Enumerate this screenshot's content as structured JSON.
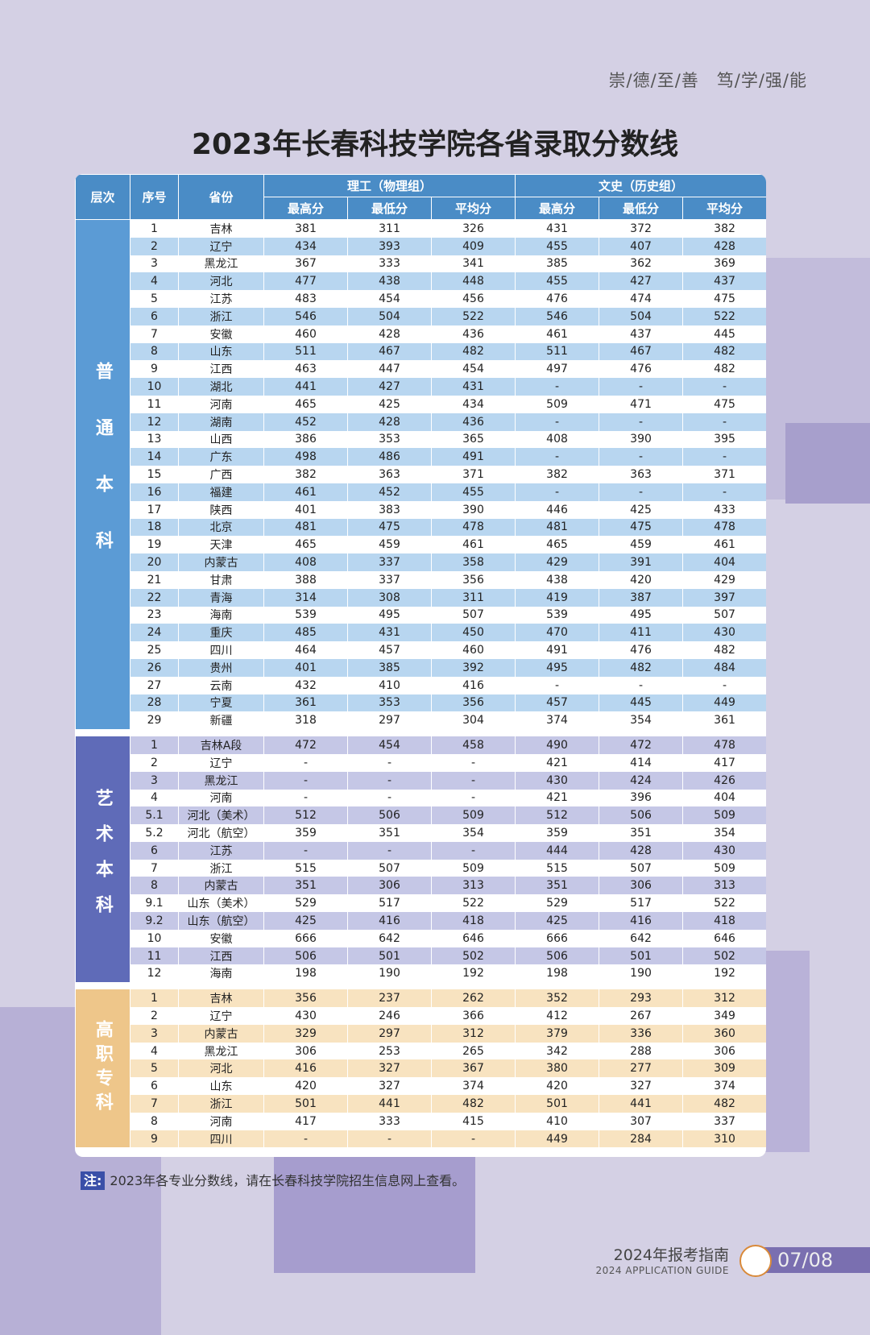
{
  "motto": "崇/德/至/善　笃/学/强/能",
  "title": "2023年长春科技学院各省录取分数线",
  "headers": {
    "level": "层次",
    "index": "序号",
    "province": "省份",
    "group1": "理工（物理组）",
    "group2": "文史（历史组）",
    "max": "最高分",
    "min": "最低分",
    "avg": "平均分"
  },
  "sections": [
    {
      "label": "普通本科",
      "rows": [
        [
          "1",
          "吉林",
          "381",
          "311",
          "326",
          "431",
          "372",
          "382"
        ],
        [
          "2",
          "辽宁",
          "434",
          "393",
          "409",
          "455",
          "407",
          "428"
        ],
        [
          "3",
          "黑龙江",
          "367",
          "333",
          "341",
          "385",
          "362",
          "369"
        ],
        [
          "4",
          "河北",
          "477",
          "438",
          "448",
          "455",
          "427",
          "437"
        ],
        [
          "5",
          "江苏",
          "483",
          "454",
          "456",
          "476",
          "474",
          "475"
        ],
        [
          "6",
          "浙江",
          "546",
          "504",
          "522",
          "546",
          "504",
          "522"
        ],
        [
          "7",
          "安徽",
          "460",
          "428",
          "436",
          "461",
          "437",
          "445"
        ],
        [
          "8",
          "山东",
          "511",
          "467",
          "482",
          "511",
          "467",
          "482"
        ],
        [
          "9",
          "江西",
          "463",
          "447",
          "454",
          "497",
          "476",
          "482"
        ],
        [
          "10",
          "湖北",
          "441",
          "427",
          "431",
          "-",
          "-",
          "-"
        ],
        [
          "11",
          "河南",
          "465",
          "425",
          "434",
          "509",
          "471",
          "475"
        ],
        [
          "12",
          "湖南",
          "452",
          "428",
          "436",
          "-",
          "-",
          "-"
        ],
        [
          "13",
          "山西",
          "386",
          "353",
          "365",
          "408",
          "390",
          "395"
        ],
        [
          "14",
          "广东",
          "498",
          "486",
          "491",
          "-",
          "-",
          "-"
        ],
        [
          "15",
          "广西",
          "382",
          "363",
          "371",
          "382",
          "363",
          "371"
        ],
        [
          "16",
          "福建",
          "461",
          "452",
          "455",
          "-",
          "-",
          "-"
        ],
        [
          "17",
          "陕西",
          "401",
          "383",
          "390",
          "446",
          "425",
          "433"
        ],
        [
          "18",
          "北京",
          "481",
          "475",
          "478",
          "481",
          "475",
          "478"
        ],
        [
          "19",
          "天津",
          "465",
          "459",
          "461",
          "465",
          "459",
          "461"
        ],
        [
          "20",
          "内蒙古",
          "408",
          "337",
          "358",
          "429",
          "391",
          "404"
        ],
        [
          "21",
          "甘肃",
          "388",
          "337",
          "356",
          "438",
          "420",
          "429"
        ],
        [
          "22",
          "青海",
          "314",
          "308",
          "311",
          "419",
          "387",
          "397"
        ],
        [
          "23",
          "海南",
          "539",
          "495",
          "507",
          "539",
          "495",
          "507"
        ],
        [
          "24",
          "重庆",
          "485",
          "431",
          "450",
          "470",
          "411",
          "430"
        ],
        [
          "25",
          "四川",
          "464",
          "457",
          "460",
          "491",
          "476",
          "482"
        ],
        [
          "26",
          "贵州",
          "401",
          "385",
          "392",
          "495",
          "482",
          "484"
        ],
        [
          "27",
          "云南",
          "432",
          "410",
          "416",
          "-",
          "-",
          "-"
        ],
        [
          "28",
          "宁夏",
          "361",
          "353",
          "356",
          "457",
          "445",
          "449"
        ],
        [
          "29",
          "新疆",
          "318",
          "297",
          "304",
          "374",
          "354",
          "361"
        ]
      ]
    },
    {
      "label": "艺术本科",
      "rows": [
        [
          "1",
          "吉林A段",
          "472",
          "454",
          "458",
          "490",
          "472",
          "478"
        ],
        [
          "2",
          "辽宁",
          "-",
          "-",
          "-",
          "421",
          "414",
          "417"
        ],
        [
          "3",
          "黑龙江",
          "-",
          "-",
          "-",
          "430",
          "424",
          "426"
        ],
        [
          "4",
          "河南",
          "-",
          "-",
          "-",
          "421",
          "396",
          "404"
        ],
        [
          "5.1",
          "河北（美术）",
          "512",
          "506",
          "509",
          "512",
          "506",
          "509"
        ],
        [
          "5.2",
          "河北（航空）",
          "359",
          "351",
          "354",
          "359",
          "351",
          "354"
        ],
        [
          "6",
          "江苏",
          "-",
          "-",
          "-",
          "444",
          "428",
          "430"
        ],
        [
          "7",
          "浙江",
          "515",
          "507",
          "509",
          "515",
          "507",
          "509"
        ],
        [
          "8",
          "内蒙古",
          "351",
          "306",
          "313",
          "351",
          "306",
          "313"
        ],
        [
          "9.1",
          "山东（美术）",
          "529",
          "517",
          "522",
          "529",
          "517",
          "522"
        ],
        [
          "9.2",
          "山东（航空）",
          "425",
          "416",
          "418",
          "425",
          "416",
          "418"
        ],
        [
          "10",
          "安徽",
          "666",
          "642",
          "646",
          "666",
          "642",
          "646"
        ],
        [
          "11",
          "江西",
          "506",
          "501",
          "502",
          "506",
          "501",
          "502"
        ],
        [
          "12",
          "海南",
          "198",
          "190",
          "192",
          "198",
          "190",
          "192"
        ]
      ]
    },
    {
      "label": "高职专科",
      "rows": [
        [
          "1",
          "吉林",
          "356",
          "237",
          "262",
          "352",
          "293",
          "312"
        ],
        [
          "2",
          "辽宁",
          "430",
          "246",
          "366",
          "412",
          "267",
          "349"
        ],
        [
          "3",
          "内蒙古",
          "329",
          "297",
          "312",
          "379",
          "336",
          "360"
        ],
        [
          "4",
          "黑龙江",
          "306",
          "253",
          "265",
          "342",
          "288",
          "306"
        ],
        [
          "5",
          "河北",
          "416",
          "327",
          "367",
          "380",
          "277",
          "309"
        ],
        [
          "6",
          "山东",
          "420",
          "327",
          "374",
          "420",
          "327",
          "374"
        ],
        [
          "7",
          "浙江",
          "501",
          "441",
          "482",
          "501",
          "441",
          "482"
        ],
        [
          "8",
          "河南",
          "417",
          "333",
          "415",
          "410",
          "307",
          "337"
        ],
        [
          "9",
          "四川",
          "-",
          "-",
          "-",
          "449",
          "284",
          "310"
        ]
      ]
    }
  ],
  "colors": {
    "sec1": "#5b9bd5",
    "sec2": "#5f6bb8",
    "sec3": "#eec68a"
  },
  "note": {
    "tag": "注:",
    "text": "2023年各专业分数线，请在长春科技学院招生信息网上查看。"
  },
  "guide": {
    "line1": "2024年报考指南",
    "line2": "2024 APPLICATION GUIDE"
  },
  "page": "07/08"
}
